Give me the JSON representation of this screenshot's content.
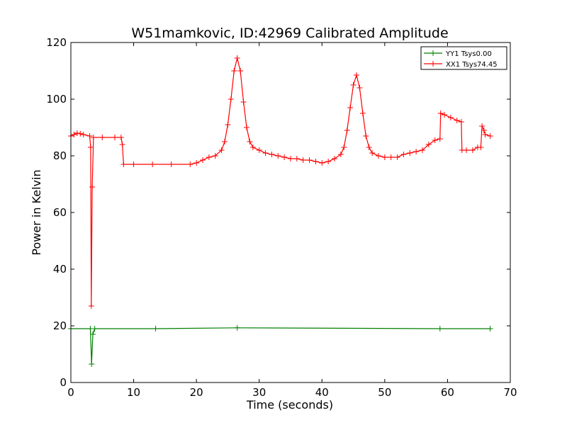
{
  "chart_data": {
    "type": "line",
    "title": "W51mamkovic, ID:42969 Calibrated Amplitude",
    "xlabel": "Time (seconds)",
    "ylabel": "Power in Kelvin",
    "xlim": [
      0,
      70
    ],
    "ylim": [
      0,
      120
    ],
    "xticks": [
      0,
      10,
      20,
      30,
      40,
      50,
      60,
      70
    ],
    "yticks": [
      0,
      20,
      40,
      60,
      80,
      100,
      120
    ],
    "grid": false,
    "legend_position": "top-right",
    "series": [
      {
        "name": "YY1 Tsys0.00",
        "color": "#008000",
        "marker": "+",
        "points": [
          [
            0,
            19
          ],
          [
            3.1,
            19
          ],
          [
            3.3,
            6.5
          ],
          [
            3.5,
            17
          ],
          [
            3.8,
            19
          ],
          [
            13.5,
            19
          ],
          [
            26.5,
            19.3
          ],
          [
            58.8,
            19
          ],
          [
            66.8,
            19
          ]
        ]
      },
      {
        "name": "XX1 Tsys74.45",
        "color": "#ff0000",
        "marker": "+",
        "points": [
          [
            0,
            87
          ],
          [
            0.5,
            87.5
          ],
          [
            1,
            88
          ],
          [
            1.5,
            87.8
          ],
          [
            2,
            87.5
          ],
          [
            3,
            87
          ],
          [
            3.15,
            83
          ],
          [
            3.25,
            27
          ],
          [
            3.4,
            69
          ],
          [
            3.6,
            86.5
          ],
          [
            5,
            86.5
          ],
          [
            7,
            86.5
          ],
          [
            8,
            86.5
          ],
          [
            8.2,
            84
          ],
          [
            8.4,
            77
          ],
          [
            10,
            77
          ],
          [
            13,
            77
          ],
          [
            16,
            77
          ],
          [
            19,
            77
          ],
          [
            20,
            77.5
          ],
          [
            21,
            78.5
          ],
          [
            22,
            79.5
          ],
          [
            23,
            80
          ],
          [
            24,
            82
          ],
          [
            24.5,
            85
          ],
          [
            25,
            91
          ],
          [
            25.5,
            100
          ],
          [
            26,
            110
          ],
          [
            26.5,
            114.5
          ],
          [
            27,
            110
          ],
          [
            27.5,
            99
          ],
          [
            28,
            90
          ],
          [
            28.5,
            85
          ],
          [
            29,
            83
          ],
          [
            30,
            82
          ],
          [
            31,
            81
          ],
          [
            32,
            80.5
          ],
          [
            33,
            80
          ],
          [
            34,
            79.5
          ],
          [
            35,
            79
          ],
          [
            36,
            79
          ],
          [
            37,
            78.5
          ],
          [
            38,
            78.5
          ],
          [
            39,
            78
          ],
          [
            40,
            77.5
          ],
          [
            41,
            78
          ],
          [
            42,
            79
          ],
          [
            43,
            80.5
          ],
          [
            43.5,
            83
          ],
          [
            44,
            89
          ],
          [
            44.5,
            97
          ],
          [
            45,
            105
          ],
          [
            45.5,
            108.5
          ],
          [
            46,
            104
          ],
          [
            46.5,
            95
          ],
          [
            47,
            87
          ],
          [
            47.5,
            83
          ],
          [
            48,
            81
          ],
          [
            49,
            80
          ],
          [
            50,
            79.5
          ],
          [
            51,
            79.5
          ],
          [
            52,
            79.5
          ],
          [
            53,
            80.5
          ],
          [
            54,
            81
          ],
          [
            55,
            81.5
          ],
          [
            56,
            82
          ],
          [
            57,
            84
          ],
          [
            58,
            85.5
          ],
          [
            58.8,
            86
          ],
          [
            58.9,
            95
          ],
          [
            59.5,
            94.5
          ],
          [
            60.5,
            93.5
          ],
          [
            61.5,
            92.5
          ],
          [
            62.2,
            92
          ],
          [
            62.3,
            82
          ],
          [
            63,
            82
          ],
          [
            64,
            82
          ],
          [
            64.8,
            83
          ],
          [
            65.3,
            83
          ],
          [
            65.5,
            90.5
          ],
          [
            65.8,
            89
          ],
          [
            66,
            87.5
          ],
          [
            66.8,
            87
          ]
        ]
      }
    ]
  }
}
